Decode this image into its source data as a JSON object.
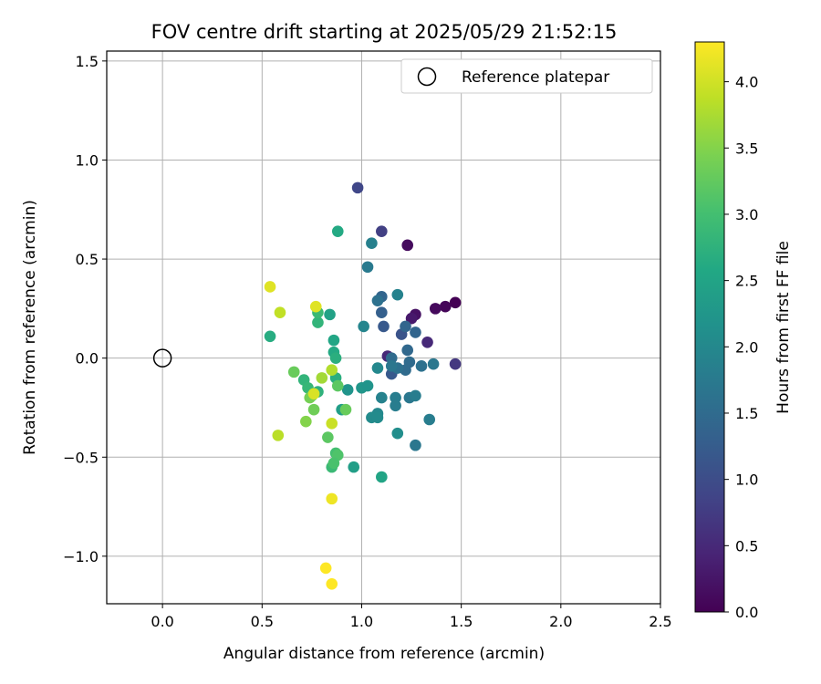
{
  "chart_data": {
    "type": "scatter",
    "title": "FOV centre drift starting at 2025/05/29 21:52:15",
    "xlabel": "Angular distance from reference (arcmin)",
    "ylabel": "Rotation from reference (arcmin)",
    "xlim": [
      -0.28,
      2.5
    ],
    "ylim": [
      -1.24,
      1.55
    ],
    "xticks": [
      0.0,
      0.5,
      1.0,
      1.5,
      2.0,
      2.5
    ],
    "xtick_labels": [
      "0.0",
      "0.5",
      "1.0",
      "1.5",
      "2.0",
      "2.5"
    ],
    "yticks": [
      -1.0,
      -0.5,
      0.0,
      0.5,
      1.0,
      1.5
    ],
    "ytick_labels": [
      "−1.0",
      "−0.5",
      "0.0",
      "0.5",
      "1.0",
      "1.5"
    ],
    "grid": true,
    "legend": {
      "placement": "top-right",
      "entries": [
        "Reference platepar"
      ]
    },
    "reference_point": {
      "x": 0.0,
      "y": 0.0
    },
    "colorbar": {
      "label": "Hours from first FF file",
      "range": [
        0.0,
        4.3
      ],
      "ticks": [
        0.0,
        0.5,
        1.0,
        1.5,
        2.0,
        2.5,
        3.0,
        3.5,
        4.0
      ],
      "tick_labels": [
        "0.0",
        "0.5",
        "1.0",
        "1.5",
        "2.0",
        "2.5",
        "3.0",
        "3.5",
        "4.0"
      ],
      "colormap": "viridis"
    },
    "points": [
      {
        "x": 1.47,
        "y": 0.28,
        "t": 0.0
      },
      {
        "x": 1.42,
        "y": 0.26,
        "t": 0.05
      },
      {
        "x": 1.37,
        "y": 0.25,
        "t": 0.1
      },
      {
        "x": 1.23,
        "y": 0.57,
        "t": 0.12
      },
      {
        "x": 1.27,
        "y": 0.22,
        "t": 0.2
      },
      {
        "x": 1.25,
        "y": 0.2,
        "t": 0.3
      },
      {
        "x": 1.33,
        "y": 0.08,
        "t": 0.5
      },
      {
        "x": 1.13,
        "y": 0.01,
        "t": 0.5
      },
      {
        "x": 1.47,
        "y": -0.03,
        "t": 0.7
      },
      {
        "x": 1.1,
        "y": 0.64,
        "t": 0.8
      },
      {
        "x": 0.98,
        "y": 0.86,
        "t": 0.9
      },
      {
        "x": 1.2,
        "y": 0.12,
        "t": 1.1
      },
      {
        "x": 1.11,
        "y": 0.16,
        "t": 1.2
      },
      {
        "x": 1.15,
        "y": -0.08,
        "t": 1.2
      },
      {
        "x": 1.1,
        "y": 0.23,
        "t": 1.3
      },
      {
        "x": 1.1,
        "y": 0.31,
        "t": 1.4
      },
      {
        "x": 1.22,
        "y": 0.16,
        "t": 1.4
      },
      {
        "x": 1.27,
        "y": 0.13,
        "t": 1.4
      },
      {
        "x": 1.23,
        "y": 0.04,
        "t": 1.45
      },
      {
        "x": 1.15,
        "y": 0.0,
        "t": 1.5
      },
      {
        "x": 1.24,
        "y": -0.02,
        "t": 1.5
      },
      {
        "x": 1.22,
        "y": -0.06,
        "t": 1.5
      },
      {
        "x": 1.18,
        "y": -0.05,
        "t": 1.6
      },
      {
        "x": 1.3,
        "y": -0.04,
        "t": 1.6
      },
      {
        "x": 1.36,
        "y": -0.03,
        "t": 1.7
      },
      {
        "x": 1.08,
        "y": 0.29,
        "t": 1.6
      },
      {
        "x": 1.15,
        "y": -0.04,
        "t": 1.7
      },
      {
        "x": 1.24,
        "y": -0.2,
        "t": 1.7
      },
      {
        "x": 1.27,
        "y": -0.19,
        "t": 1.8
      },
      {
        "x": 1.17,
        "y": -0.2,
        "t": 1.8
      },
      {
        "x": 1.17,
        "y": -0.24,
        "t": 1.8
      },
      {
        "x": 1.1,
        "y": -0.2,
        "t": 1.9
      },
      {
        "x": 1.27,
        "y": -0.44,
        "t": 1.7
      },
      {
        "x": 1.34,
        "y": -0.31,
        "t": 1.8
      },
      {
        "x": 1.03,
        "y": 0.46,
        "t": 1.75
      },
      {
        "x": 1.05,
        "y": 0.58,
        "t": 1.85
      },
      {
        "x": 1.18,
        "y": 0.32,
        "t": 1.9
      },
      {
        "x": 1.01,
        "y": 0.16,
        "t": 1.95
      },
      {
        "x": 1.08,
        "y": -0.05,
        "t": 2.0
      },
      {
        "x": 1.08,
        "y": -0.28,
        "t": 2.0
      },
      {
        "x": 1.05,
        "y": -0.3,
        "t": 2.05
      },
      {
        "x": 1.08,
        "y": -0.3,
        "t": 2.05
      },
      {
        "x": 1.18,
        "y": -0.38,
        "t": 2.1
      },
      {
        "x": 0.93,
        "y": -0.16,
        "t": 2.2
      },
      {
        "x": 1.0,
        "y": -0.15,
        "t": 2.25
      },
      {
        "x": 1.03,
        "y": -0.14,
        "t": 2.2
      },
      {
        "x": 0.9,
        "y": -0.26,
        "t": 2.4
      },
      {
        "x": 0.96,
        "y": -0.55,
        "t": 2.4
      },
      {
        "x": 1.1,
        "y": -0.6,
        "t": 2.5
      },
      {
        "x": 0.84,
        "y": 0.22,
        "t": 2.45
      },
      {
        "x": 0.86,
        "y": 0.09,
        "t": 2.55
      },
      {
        "x": 0.86,
        "y": 0.03,
        "t": 2.6
      },
      {
        "x": 0.88,
        "y": 0.64,
        "t": 2.6
      },
      {
        "x": 0.54,
        "y": 0.11,
        "t": 2.65
      },
      {
        "x": 0.87,
        "y": 0.0,
        "t": 2.7
      },
      {
        "x": 0.87,
        "y": -0.1,
        "t": 2.7
      },
      {
        "x": 0.78,
        "y": -0.17,
        "t": 2.75
      },
      {
        "x": 0.71,
        "y": -0.11,
        "t": 2.8
      },
      {
        "x": 0.73,
        "y": -0.15,
        "t": 2.85
      },
      {
        "x": 0.78,
        "y": 0.18,
        "t": 2.8
      },
      {
        "x": 0.78,
        "y": 0.23,
        "t": 2.9
      },
      {
        "x": 0.85,
        "y": -0.55,
        "t": 2.9
      },
      {
        "x": 0.87,
        "y": -0.48,
        "t": 3.0
      },
      {
        "x": 0.88,
        "y": -0.49,
        "t": 3.1
      },
      {
        "x": 0.86,
        "y": -0.53,
        "t": 3.05
      },
      {
        "x": 0.75,
        "y": -0.19,
        "t": 3.1
      },
      {
        "x": 0.83,
        "y": -0.4,
        "t": 3.2
      },
      {
        "x": 0.88,
        "y": -0.14,
        "t": 3.2
      },
      {
        "x": 0.92,
        "y": -0.26,
        "t": 3.3
      },
      {
        "x": 0.66,
        "y": -0.07,
        "t": 3.3
      },
      {
        "x": 0.76,
        "y": -0.26,
        "t": 3.35
      },
      {
        "x": 0.74,
        "y": -0.2,
        "t": 3.4
      },
      {
        "x": 0.72,
        "y": -0.32,
        "t": 3.5
      },
      {
        "x": 0.8,
        "y": -0.1,
        "t": 3.7
      },
      {
        "x": 0.85,
        "y": -0.06,
        "t": 3.8
      },
      {
        "x": 0.58,
        "y": -0.39,
        "t": 3.85
      },
      {
        "x": 0.59,
        "y": 0.23,
        "t": 3.9
      },
      {
        "x": 0.85,
        "y": -0.33,
        "t": 3.95
      },
      {
        "x": 0.76,
        "y": -0.18,
        "t": 4.05
      },
      {
        "x": 0.54,
        "y": 0.36,
        "t": 4.1
      },
      {
        "x": 0.77,
        "y": 0.26,
        "t": 4.1
      },
      {
        "x": 0.85,
        "y": -0.71,
        "t": 4.2
      },
      {
        "x": 0.82,
        "y": -1.06,
        "t": 4.3
      },
      {
        "x": 0.85,
        "y": -1.14,
        "t": 4.3
      }
    ]
  }
}
